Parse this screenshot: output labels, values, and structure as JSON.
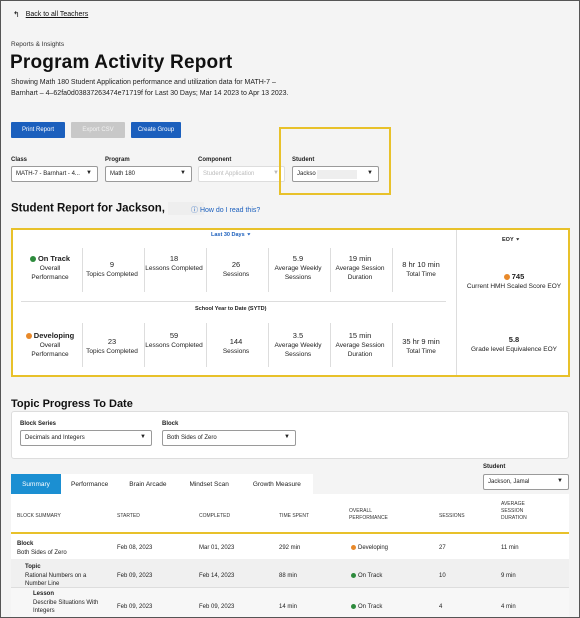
{
  "nav": {
    "back_arrow": "↰",
    "back_label": "Back to all Teachers"
  },
  "breadcrumb": "Reports & Insights",
  "page_title": "Program Activity Report",
  "description": "Showing Math 180 Student Application performance and utilization data for MATH-7 – Barnhart – 4–62fa0d03837263474e71719f for Last 30 Days; Mar 14 2023 to Apr 13 2023.",
  "toolbar": {
    "print": "Print Report",
    "export": "Export CSV",
    "create_group": "Create Group"
  },
  "filters": {
    "class": {
      "label": "Class",
      "value": "MATH-7 - Barnhart - 4..."
    },
    "program": {
      "label": "Program",
      "value": "Math 180"
    },
    "component": {
      "label": "Component",
      "value": "Student Application"
    },
    "student": {
      "label": "Student",
      "value": "Jackso"
    }
  },
  "report": {
    "heading": "Student Report for Jackson,",
    "help_icon": "info-icon",
    "help_link": "How do I read this?"
  },
  "stats": {
    "period_label": "Last 30 Days",
    "eoy_label": "EOY",
    "sytd_label": "School Year to Date (SYTD)",
    "last30": [
      {
        "value": "On Track",
        "label": "Overall Performance",
        "status_color": "#2e8b3d"
      },
      {
        "value": "9",
        "label": "Topics Completed"
      },
      {
        "value": "18",
        "label": "Lessons Completed"
      },
      {
        "value": "26",
        "label": "Sessions"
      },
      {
        "value": "5.9",
        "label": "Average Weekly Sessions"
      },
      {
        "value": "19 min",
        "label": "Average Session Duration"
      },
      {
        "value": "8 hr 10 min",
        "label": "Total Time"
      }
    ],
    "sytd": [
      {
        "value": "Developing",
        "label": "Overall Performance",
        "status_color": "#e8892a"
      },
      {
        "value": "23",
        "label": "Topics Completed"
      },
      {
        "value": "59",
        "label": "Lessons Completed"
      },
      {
        "value": "144",
        "label": "Sessions"
      },
      {
        "value": "3.5",
        "label": "Average Weekly Sessions"
      },
      {
        "value": "15 min",
        "label": "Average Session Duration"
      },
      {
        "value": "35 hr 9 min",
        "label": "Total Time"
      }
    ],
    "eoy": [
      {
        "value": "745",
        "label": "Current HMH Scaled Score EOY",
        "status_color": "#e8892a"
      },
      {
        "value": "5.8",
        "label": "Grade level Equivalence EOY"
      }
    ]
  },
  "topic_progress": {
    "heading": "Topic Progress To Date",
    "block_series": {
      "label": "Block Series",
      "value": "Decimals and Integers"
    },
    "block": {
      "label": "Block",
      "value": "Both Sides of Zero"
    }
  },
  "tabs": [
    "Summary",
    "Performance",
    "Brain Arcade",
    "Mindset Scan",
    "Growth Measure"
  ],
  "student_picker": {
    "label": "Student",
    "value": "Jackson, Jamal"
  },
  "table": {
    "headers": [
      "BLOCK SUMMARY",
      "STARTED",
      "COMPLETED",
      "TIME SPENT",
      "OVERALL PERFORMANCE",
      "SESSIONS",
      "AVERAGE SESSION DURATION"
    ],
    "rows": [
      {
        "type": "Block",
        "name": "Both Sides of Zero",
        "started": "Feb 08, 2023",
        "completed": "Mar 01, 2023",
        "time": "292 min",
        "performance": "Developing",
        "perf_color": "#e8892a",
        "sessions": "27",
        "avg": "11 min"
      },
      {
        "type": "Topic",
        "name": "Rational Numbers on a Number Line",
        "started": "Feb 09, 2023",
        "completed": "Feb 14, 2023",
        "time": "88 min",
        "performance": "On Track",
        "perf_color": "#2e8b3d",
        "sessions": "10",
        "avg": "9 min"
      },
      {
        "type": "Lesson",
        "name": "Describe Situations With Integers",
        "started": "Feb 09, 2023",
        "completed": "Feb 09, 2023",
        "time": "14 min",
        "performance": "On Track",
        "perf_color": "#2e8b3d",
        "sessions": "4",
        "avg": "4 min"
      }
    ]
  },
  "colors": {
    "primary": "#1b5fbd",
    "tab_active": "#1b8fd2",
    "highlight": "#e8c12a",
    "on_track": "#2e8b3d",
    "developing": "#e8892a"
  }
}
